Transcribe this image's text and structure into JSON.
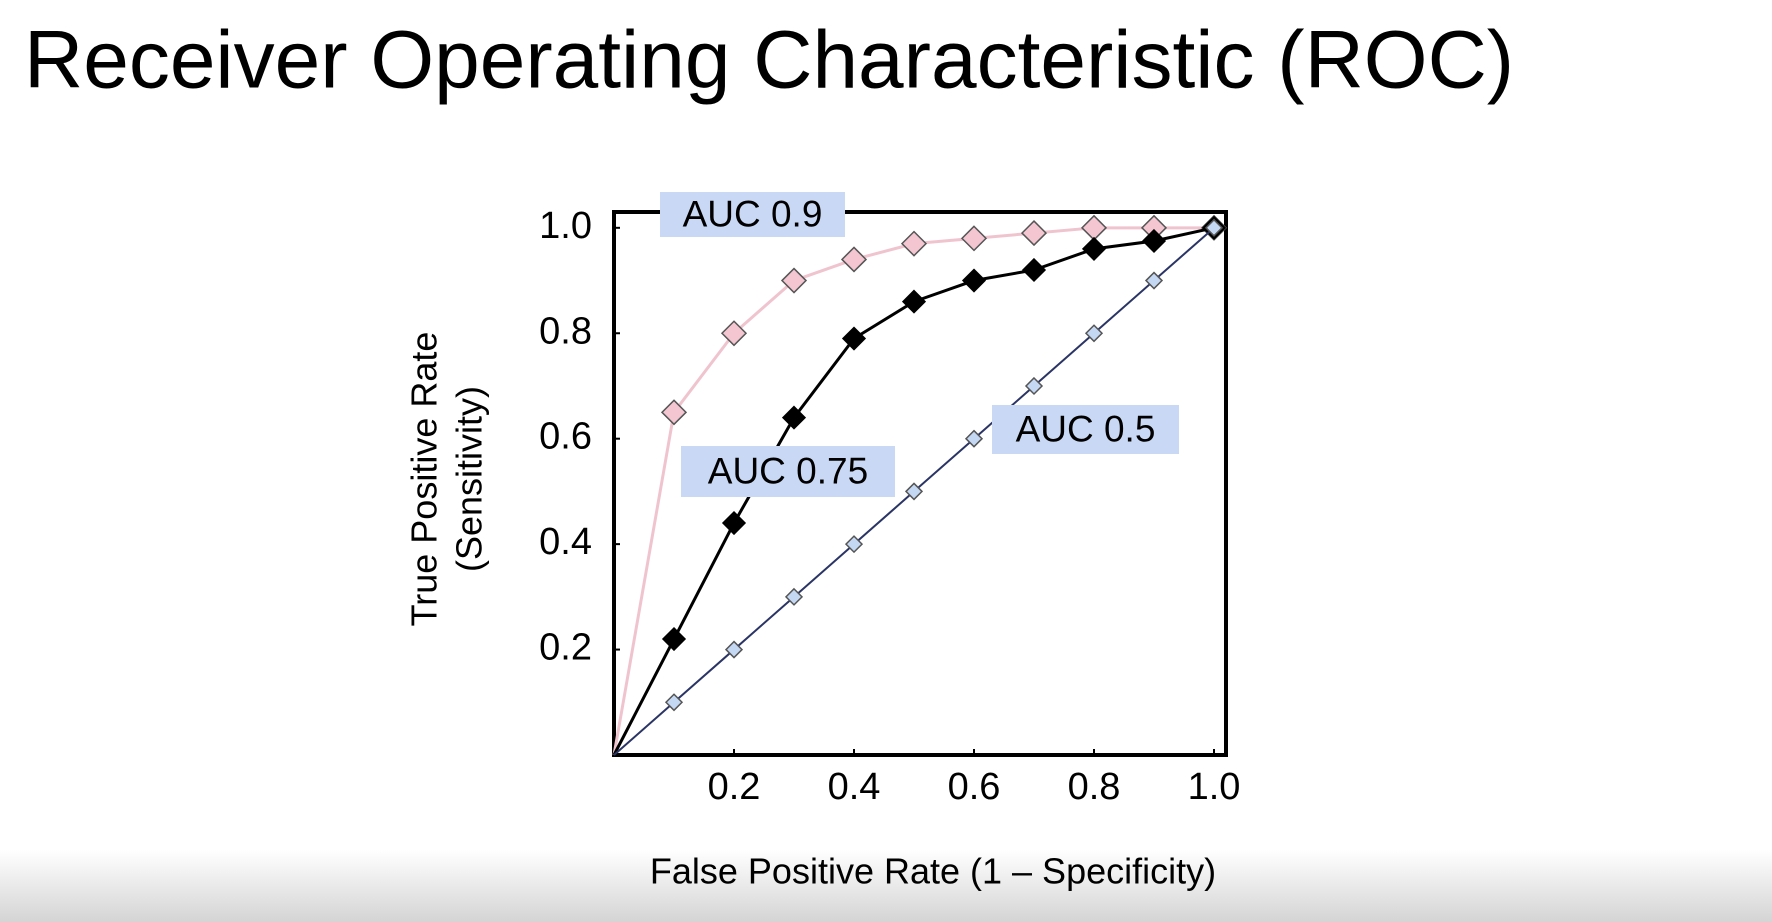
{
  "chart_data": {
    "type": "line",
    "title": "Receiver Operating Characteristic (ROC)",
    "xlabel": "False Positive Rate (1 – Specificity)",
    "ylabel": [
      "True Positive Rate",
      "(Sensitivity)"
    ],
    "x": [
      0,
      0.1,
      0.2,
      0.3,
      0.4,
      0.5,
      0.6,
      0.7,
      0.8,
      0.9,
      1.0
    ],
    "series": [
      {
        "color": "#f0c4cf",
        "marker_color": "#f4c6d2",
        "values": [
          0,
          0.65,
          0.8,
          0.9,
          0.94,
          0.97,
          0.98,
          0.99,
          1.0,
          1.0,
          1.0
        ]
      },
      {
        "color": "#000000",
        "marker_color": "#000000",
        "values": [
          0,
          0.22,
          0.44,
          0.64,
          0.79,
          0.86,
          0.9,
          0.92,
          0.96,
          0.975,
          1.0
        ]
      },
      {
        "color": "#2a3566",
        "marker_color": "#c5d8f3",
        "values": [
          0,
          0.1,
          0.2,
          0.3,
          0.4,
          0.5,
          0.6,
          0.7,
          0.8,
          0.9,
          1.0
        ]
      }
    ],
    "annotations": [
      "AUC 0.9",
      "AUC 0.75",
      "AUC 0.5"
    ],
    "annotation_color": "#c9d9f5",
    "xlim": [
      0,
      1.02
    ],
    "ylim": [
      0,
      1.03
    ],
    "xticks": [
      0.2,
      0.4,
      0.6,
      0.8,
      {
        "value": 1,
        "label": "1.0"
      }
    ],
    "yticks": [
      0.2,
      0.4,
      0.6,
      0.8,
      {
        "value": 1,
        "label": "1.0"
      }
    ],
    "grid": false
  }
}
